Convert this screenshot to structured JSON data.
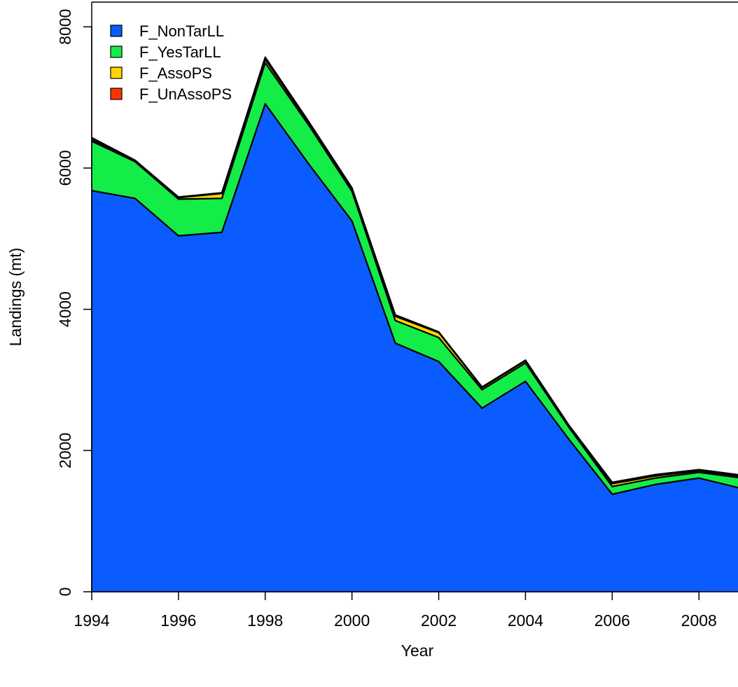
{
  "chart_data": {
    "type": "area",
    "stacked": true,
    "xlabel": "Year",
    "ylabel": "Landings (mt)",
    "x": [
      1994,
      1995,
      1996,
      1997,
      1998,
      1999,
      2000,
      2001,
      2002,
      2003,
      2004,
      2005,
      2006,
      2007,
      2008,
      2009
    ],
    "xlim": [
      1994,
      2008.9
    ],
    "ylim": [
      0,
      8350
    ],
    "xticks": [
      "1994",
      "1996",
      "1998",
      "2000",
      "2002",
      "2004",
      "2006",
      "2008"
    ],
    "yticks": [
      "0",
      "2000",
      "4000",
      "6000",
      "8000"
    ],
    "legend_position": "top-left",
    "series": [
      {
        "name": "F_NonTarLL",
        "color": "#0a5cff",
        "values": [
          5680,
          5570,
          5040,
          5090,
          6910,
          6060,
          5250,
          3520,
          3260,
          2600,
          2980,
          2160,
          1380,
          1520,
          1610,
          1460
        ]
      },
      {
        "name": "F_YesTarLL",
        "color": "#14ec48",
        "values": [
          700,
          520,
          520,
          480,
          580,
          550,
          420,
          320,
          340,
          260,
          260,
          170,
          110,
          90,
          80,
          150
        ]
      },
      {
        "name": "F_AssoPS",
        "color": "#ffd600",
        "values": [
          20,
          10,
          20,
          70,
          50,
          30,
          40,
          60,
          70,
          30,
          30,
          20,
          40,
          30,
          20,
          20
        ]
      },
      {
        "name": "F_UnAssoPS",
        "color": "#ff3300",
        "values": [
          30,
          10,
          10,
          10,
          30,
          20,
          10,
          20,
          10,
          10,
          10,
          10,
          20,
          20,
          20,
          20
        ]
      }
    ]
  }
}
